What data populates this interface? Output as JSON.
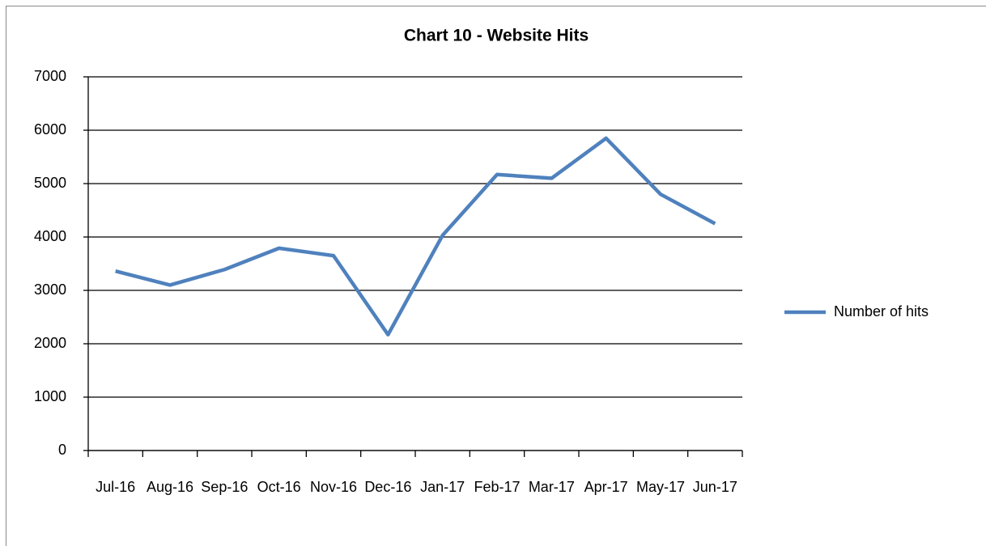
{
  "chart_data": {
    "type": "line",
    "title": "Chart 10 - Website Hits",
    "categories": [
      "Jul-16",
      "Aug-16",
      "Sep-16",
      "Oct-16",
      "Nov-16",
      "Dec-16",
      "Jan-17",
      "Feb-17",
      "Mar-17",
      "Apr-17",
      "May-17",
      "Jun-17"
    ],
    "series": [
      {
        "name": "Number of hits",
        "color": "#4f81bd",
        "values": [
          3360,
          3100,
          3390,
          3790,
          3650,
          2170,
          4030,
          5170,
          5100,
          5850,
          4800,
          4250
        ]
      }
    ],
    "ylim": [
      0,
      7000
    ],
    "yticks": [
      0,
      1000,
      2000,
      3000,
      4000,
      5000,
      6000,
      7000
    ],
    "grid": true,
    "legend": "right"
  }
}
